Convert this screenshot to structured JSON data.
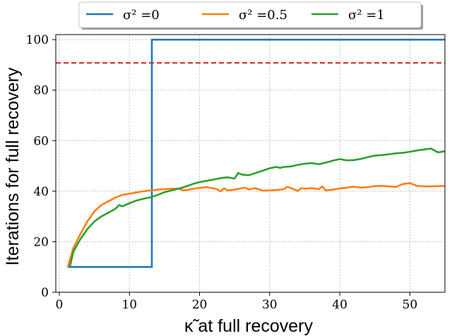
{
  "chart_data": {
    "type": "line",
    "xlabel": "κ̃ at full recovery",
    "ylabel": "Iterations for full recovery",
    "xlim": [
      -0.5,
      55
    ],
    "ylim": [
      0,
      102
    ],
    "xticks": [
      0,
      10,
      20,
      30,
      40,
      50
    ],
    "yticks": [
      0,
      20,
      40,
      60,
      80,
      100
    ],
    "grid": true,
    "legend_position": "top-center, above plot",
    "reference_line": {
      "y": 90.8,
      "color": "#d62728",
      "style": "dashed"
    },
    "series": [
      {
        "name": "σ² =0",
        "color": "#1f77b4",
        "x": [
          1.2,
          13.2,
          13.2,
          55
        ],
        "y": [
          10,
          10,
          100,
          100
        ]
      },
      {
        "name": "σ² =0.5",
        "color": "#ff7f0e",
        "x": [
          1.2,
          2,
          3,
          4,
          5,
          6,
          7,
          8,
          8.5,
          9,
          10,
          11,
          12,
          13,
          14,
          15,
          16,
          17,
          17.5,
          18,
          19,
          20,
          21,
          22,
          22.5,
          23,
          23.5,
          24,
          25,
          26,
          26.5,
          27,
          28,
          29,
          30,
          31,
          32,
          32.5,
          33,
          34,
          34.5,
          35,
          36,
          37,
          37.5,
          38,
          39,
          40,
          41,
          42,
          43,
          44,
          45,
          46,
          47,
          48,
          49,
          50,
          51,
          52,
          53,
          54,
          55
        ],
        "y": [
          10,
          17.5,
          23,
          28,
          32,
          34.5,
          36,
          37.5,
          38,
          38.5,
          39,
          39.5,
          40,
          40.3,
          40.6,
          40.8,
          41,
          41,
          40.5,
          40.4,
          40.9,
          41.3,
          41.6,
          41.1,
          40.8,
          39.9,
          41.2,
          40.3,
          40.6,
          41.2,
          41.4,
          40.7,
          41.2,
          40.2,
          40.3,
          40.5,
          40.8,
          41.7,
          41.3,
          40.1,
          41.2,
          41,
          41.2,
          40.8,
          41.9,
          40.3,
          40.6,
          41.1,
          41.4,
          41.8,
          41.4,
          41.6,
          42,
          42.1,
          41.9,
          41.7,
          42.8,
          43.2,
          42.1,
          41.9,
          41.9,
          42,
          42.1
        ]
      },
      {
        "name": "σ² =1",
        "color": "#2ca02c",
        "x": [
          1.5,
          2,
          3,
          4,
          5,
          6,
          7,
          8,
          8.5,
          9,
          10,
          11,
          12,
          13,
          14,
          15,
          16,
          17,
          18,
          19,
          20,
          21,
          22,
          23,
          24,
          25,
          25.5,
          26,
          27,
          28,
          29,
          30,
          31,
          31.5,
          32,
          33,
          34,
          35,
          36,
          37,
          38,
          39,
          40,
          41,
          42,
          43,
          44,
          45,
          46,
          47,
          48,
          49,
          50,
          51,
          52,
          53,
          54,
          55
        ],
        "y": [
          10,
          16,
          21,
          25,
          28,
          30,
          31.5,
          33,
          34.5,
          34,
          35.2,
          36.3,
          37,
          37.6,
          38.5,
          39.6,
          40.3,
          41,
          41.8,
          42.8,
          43.6,
          44.1,
          44.6,
          45.2,
          45.5,
          45,
          47.2,
          46.6,
          46.3,
          47.2,
          48.1,
          49.1,
          49.6,
          49.2,
          49.6,
          49.8,
          50.4,
          50.9,
          51.1,
          50.7,
          51.3,
          52.1,
          52.7,
          52.2,
          52.3,
          52.8,
          53.5,
          54.1,
          54.3,
          54.6,
          55,
          55.2,
          55.6,
          56.1,
          56.5,
          56.9,
          55.4,
          55.8
        ]
      }
    ]
  }
}
